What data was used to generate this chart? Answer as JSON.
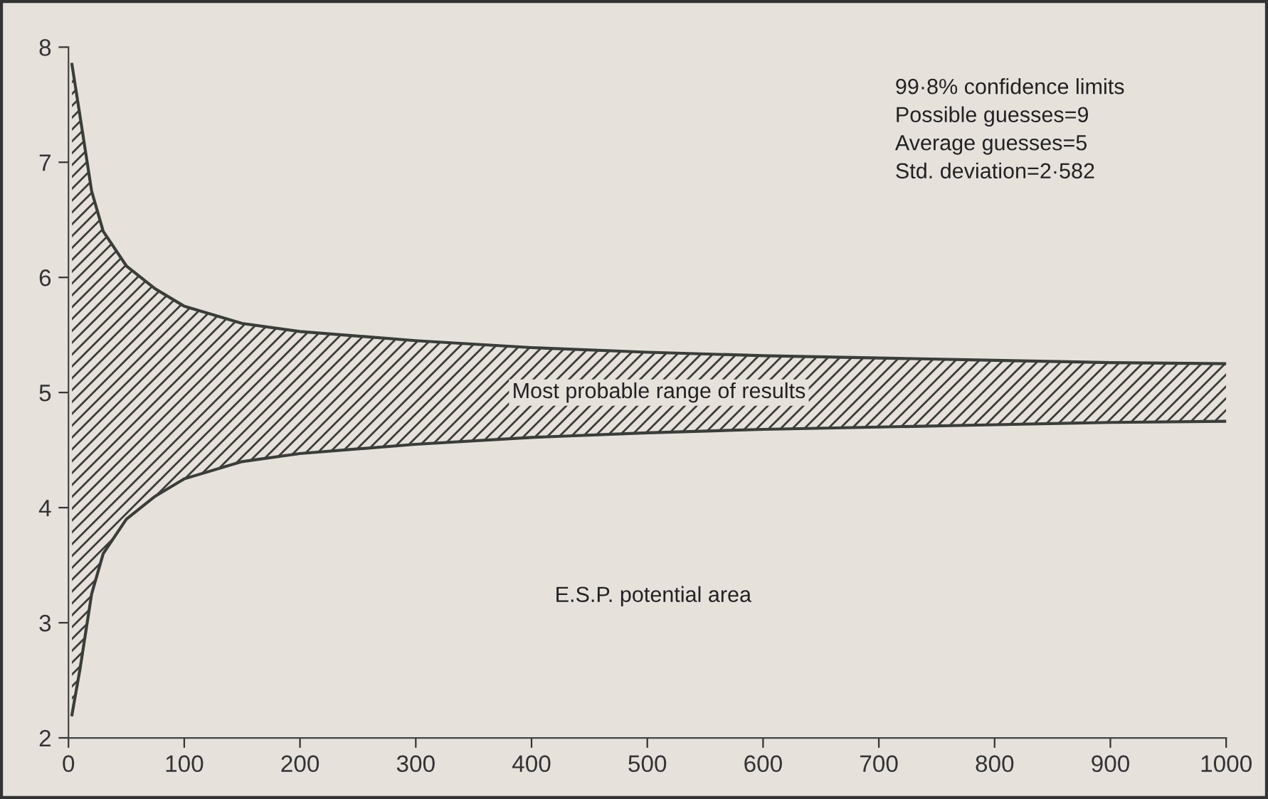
{
  "chart_data": {
    "type": "area",
    "x": [
      3,
      10,
      20,
      30,
      50,
      75,
      100,
      150,
      200,
      300,
      400,
      500,
      600,
      700,
      800,
      900,
      1000
    ],
    "series": [
      {
        "color": "#3a3d38",
        "values": [
          7.85,
          7.4,
          6.75,
          6.4,
          6.1,
          5.9,
          5.75,
          5.6,
          5.53,
          5.45,
          5.39,
          5.35,
          5.32,
          5.3,
          5.28,
          5.26,
          5.25
        ]
      },
      {
        "type": "line",
        "color": "#3a3d38",
        "values": [
          2.2,
          2.6,
          3.25,
          3.6,
          3.9,
          4.1,
          4.25,
          4.4,
          4.47,
          4.55,
          4.61,
          4.65,
          4.68,
          4.7,
          4.72,
          4.74,
          4.75
        ]
      }
    ],
    "xlim": [
      0,
      1000
    ],
    "xticks": [
      0,
      100,
      200,
      300,
      400,
      500,
      600,
      700,
      800,
      900,
      1000
    ],
    "ylim": [
      2,
      8
    ],
    "yticks": [
      2,
      3,
      4,
      5,
      6,
      7,
      8
    ],
    "grid": false,
    "annotations": [
      "99·8% confidence limits\nPossible guesses=9\nAverage guesses=5\nStd. deviation=2·582",
      "Most probable range of results",
      "E.S.P. potential area"
    ]
  }
}
